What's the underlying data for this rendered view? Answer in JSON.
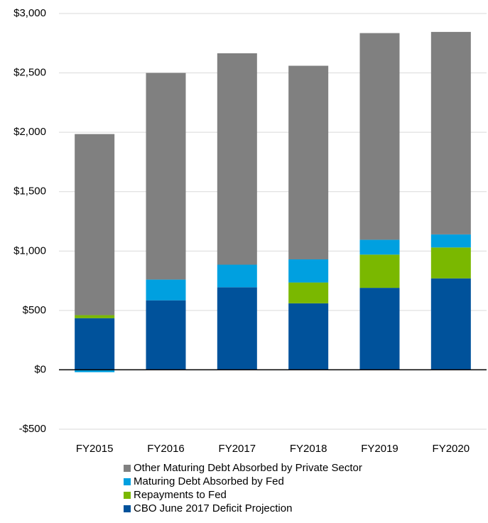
{
  "chart_data": {
    "type": "stacked_bar",
    "categories": [
      "FY2015",
      "FY2016",
      "FY2017",
      "FY2018",
      "FY2019",
      "FY2020"
    ],
    "series": [
      {
        "name": "CBO June 2017 Deficit Projection",
        "color": "#00529b",
        "values": [
          435,
          585,
          695,
          560,
          690,
          770
        ]
      },
      {
        "name": "Repayments to Fed",
        "color": "#7ab800",
        "values": [
          25,
          0,
          0,
          175,
          280,
          260
        ]
      },
      {
        "name": "Maturing Debt Absorbed by Fed",
        "color": "#00a0e0",
        "values": [
          -20,
          175,
          190,
          195,
          125,
          110
        ]
      },
      {
        "name": "Other Maturing Debt Absorbed by Private Sector",
        "color": "#808080",
        "values": [
          1525,
          1740,
          1780,
          1630,
          1740,
          1705
        ]
      }
    ],
    "ylim": [
      -500,
      3000
    ],
    "yticks": [
      {
        "value": -500,
        "label": "-$500"
      },
      {
        "value": 0,
        "label": "$0"
      },
      {
        "value": 500,
        "label": "$500"
      },
      {
        "value": 1000,
        "label": "$1,000"
      },
      {
        "value": 1500,
        "label": "$1,500"
      },
      {
        "value": 2000,
        "label": "$2,000"
      },
      {
        "value": 2500,
        "label": "$2,500"
      },
      {
        "value": 3000,
        "label": "$3,000"
      }
    ],
    "grid": true,
    "legend": "bottom"
  }
}
